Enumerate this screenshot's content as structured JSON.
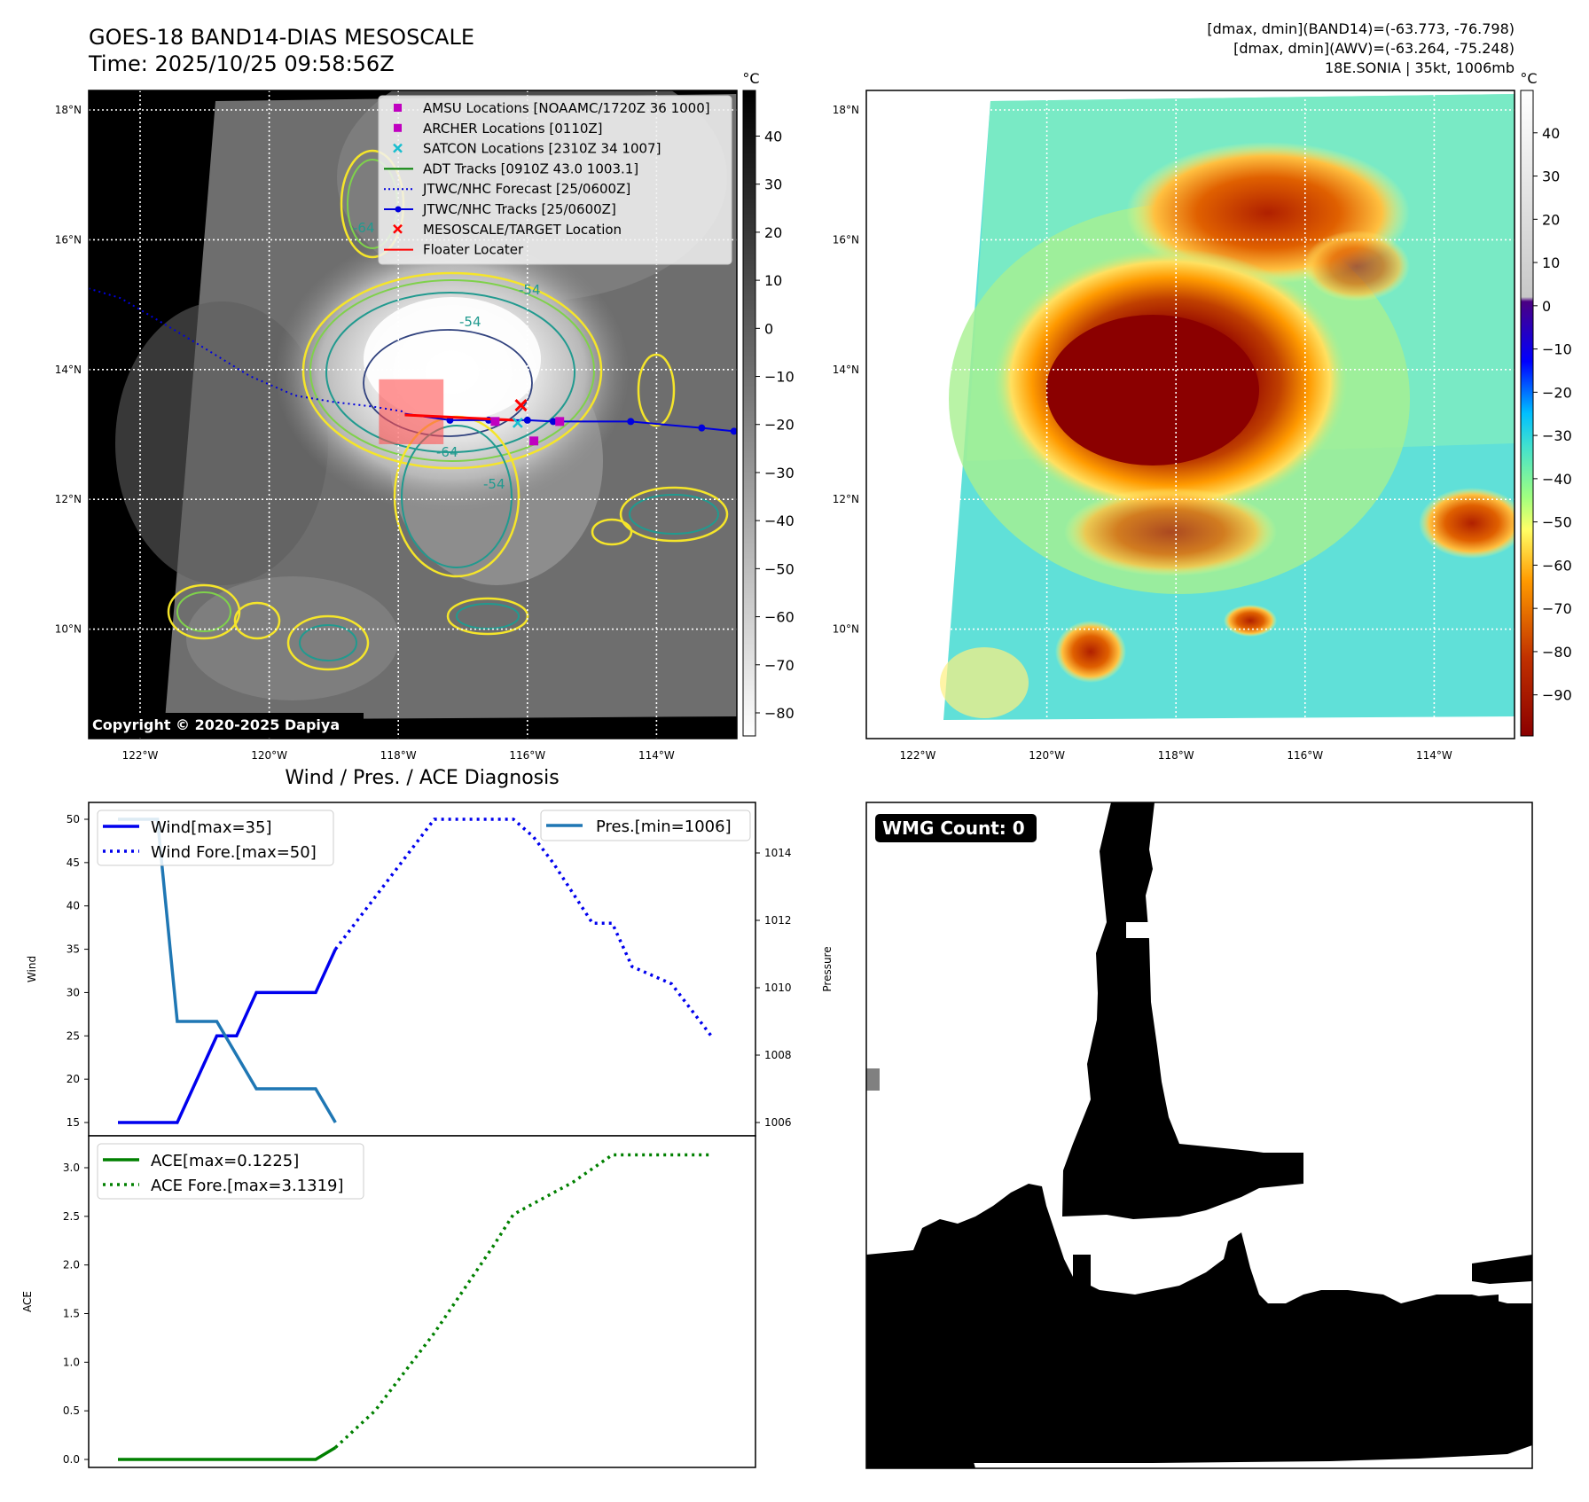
{
  "header": {
    "title": "GOES-18 BAND14-DIAS MESOSCALE",
    "time": "Time: 2025/10/25 09:58:56Z",
    "stats_line1": "[dmax, dmin](BAND14)=(-63.773, -76.798)",
    "stats_line2": "[dmax, dmin](AWV)=(-63.264, -75.248)",
    "stats_line3": "18E.SONIA | 35kt, 1006mb"
  },
  "copyright": "Copyright © 2020-2025 Dapiya",
  "colorbar_unit": "°C",
  "colors": {
    "wind": "#0000ee",
    "pressure": "#1f77b4",
    "ace": "#008000",
    "track": "#0000dd",
    "floater": "#ff0000",
    "contour_yellow": "#f5e52a",
    "contour_green": "#7fd14b",
    "contour_teal": "#219a8f",
    "contour_navy": "#31427e"
  },
  "chart_data": [
    {
      "type": "heatmap",
      "name": "ir_grayscale",
      "lon_ticks": [
        "122°W",
        "120°W",
        "118°W",
        "116°W",
        "114°W"
      ],
      "lat_ticks": [
        "18°N",
        "16°N",
        "14°N",
        "12°N",
        "10°N"
      ],
      "lon_values": [
        -122,
        -120,
        -118,
        -116,
        -114
      ],
      "lat_values": [
        18,
        16,
        14,
        12,
        10
      ],
      "colorbar": {
        "unit": "°C",
        "ticks": [
          40,
          30,
          20,
          10,
          0,
          -10,
          -20,
          -30,
          -40,
          -50,
          -60,
          -70,
          -80
        ],
        "tick_labels": [
          "40",
          "30",
          "20",
          "10",
          "0",
          "−10",
          "−20",
          "−30",
          "−40",
          "−50",
          "−60",
          "−70",
          "−80"
        ]
      },
      "contour_labels": [
        "-54",
        "-54",
        "-64",
        "-54",
        "-64"
      ],
      "legend": [
        {
          "label": "AMSU Locations [NOAAMC/1720Z 36 1000]",
          "marker": "square",
          "color": "#c000c0"
        },
        {
          "label": "ARCHER Locations [0110Z]",
          "marker": "square",
          "color": "#c000c0"
        },
        {
          "label": "SATCON Locations [2310Z 34 1007]",
          "marker": "x",
          "color": "#17becf"
        },
        {
          "label": "ADT Tracks [0910Z 43.0 1003.1]",
          "marker": "line",
          "color": "#008000"
        },
        {
          "label": "JTWC/NHC Forecast [25/0600Z]",
          "marker": "dotted",
          "color": "#0000dd"
        },
        {
          "label": "JTWC/NHC Tracks [25/0600Z]",
          "marker": "line-dot",
          "color": "#0000dd"
        },
        {
          "label": "MESOSCALE/TARGET Location",
          "marker": "x",
          "color": "#ff0000"
        },
        {
          "label": "Floater Locater",
          "marker": "line",
          "color": "#ff0000"
        }
      ],
      "forecast_track": [
        {
          "lon": -122.8,
          "lat": 15.25
        },
        {
          "lon": -122.3,
          "lat": 15.1
        },
        {
          "lon": -121.2,
          "lat": 14.45
        },
        {
          "lon": -120.3,
          "lat": 13.9
        },
        {
          "lon": -119.6,
          "lat": 13.6
        },
        {
          "lon": -119.0,
          "lat": 13.5
        },
        {
          "lon": -118.4,
          "lat": 13.43
        },
        {
          "lon": -117.9,
          "lat": 13.35
        }
      ],
      "best_track": [
        {
          "lon": -117.9,
          "lat": 13.32
        },
        {
          "lon": -117.2,
          "lat": 13.22
        },
        {
          "lon": -116.6,
          "lat": 13.22
        },
        {
          "lon": -116.0,
          "lat": 13.22
        },
        {
          "lon": -115.6,
          "lat": 13.2
        },
        {
          "lon": -114.4,
          "lat": 13.2
        },
        {
          "lon": -113.3,
          "lat": 13.1
        },
        {
          "lon": -112.8,
          "lat": 13.05
        }
      ],
      "mesoscale_target": {
        "lon": -116.1,
        "lat": 13.45
      },
      "amsu_points": [
        {
          "lon": -116.5,
          "lat": 13.2
        },
        {
          "lon": -115.9,
          "lat": 12.9
        },
        {
          "lon": -115.5,
          "lat": 13.2
        }
      ],
      "floater_box": {
        "lon_min": -118.3,
        "lon_max": -117.3,
        "lat_min": 12.85,
        "lat_max": 13.85
      }
    },
    {
      "type": "heatmap",
      "name": "ir_enhanced",
      "lon_ticks": [
        "122°W",
        "120°W",
        "118°W",
        "116°W",
        "114°W"
      ],
      "lat_ticks": [
        "18°N",
        "16°N",
        "14°N",
        "12°N",
        "10°N"
      ],
      "lon_values": [
        -122,
        -120,
        -118,
        -116,
        -114
      ],
      "lat_values": [
        18,
        16,
        14,
        12,
        10
      ],
      "colorbar": {
        "unit": "°C",
        "ticks": [
          40,
          30,
          20,
          10,
          0,
          -10,
          -20,
          -30,
          -40,
          -50,
          -60,
          -70,
          -80,
          -90
        ],
        "tick_labels": [
          "40",
          "30",
          "20",
          "10",
          "0",
          "−10",
          "−20",
          "−30",
          "−40",
          "−50",
          "−60",
          "−70",
          "−80",
          "−90"
        ]
      }
    },
    {
      "type": "line",
      "name": "wind_pressure",
      "title": "Wind / Pres. / ACE Diagnosis",
      "ylabel": "Wind",
      "ylabel_right": "Pressure",
      "ylim": [
        13.5,
        51.5
      ],
      "ylim_right": [
        1005.5,
        1015.1
      ],
      "y_ticks": [
        15,
        20,
        25,
        30,
        35,
        40,
        45,
        50
      ],
      "y_ticks_right": [
        1006,
        1008,
        1010,
        1012,
        1014
      ],
      "series": [
        {
          "name": "Wind[max=35]",
          "style": "solid",
          "x": [
            0,
            3,
            5,
            6,
            7,
            8,
            10,
            11
          ],
          "values": [
            15,
            15,
            25,
            25,
            30,
            30,
            30,
            35
          ]
        },
        {
          "name": "Wind Fore.[max=50]",
          "style": "dotted",
          "x": [
            11,
            12,
            16,
            17,
            19,
            20,
            21,
            22,
            24,
            25,
            26,
            28,
            30
          ],
          "values": [
            35,
            38,
            50,
            50,
            50,
            50,
            48,
            45,
            38,
            38,
            33,
            31,
            25
          ]
        },
        {
          "name": "Pres.[min=1006]",
          "axis": "right",
          "style": "solid",
          "x": [
            0,
            2,
            3,
            5,
            7,
            10,
            11
          ],
          "values": [
            1015,
            1015,
            1009,
            1009,
            1007,
            1007,
            1006
          ]
        }
      ],
      "legend_left": "upper-left",
      "legend_right": "upper-right"
    },
    {
      "type": "line",
      "name": "ace",
      "ylabel": "ACE",
      "ylim": [
        -0.1,
        3.3
      ],
      "y_ticks": [
        0.0,
        0.5,
        1.0,
        1.5,
        2.0,
        2.5,
        3.0
      ],
      "y_tick_labels": [
        "0.0",
        "0.5",
        "1.0",
        "1.5",
        "2.0",
        "2.5",
        "3.0"
      ],
      "series": [
        {
          "name": "ACE[max=0.1225]",
          "style": "solid",
          "x": [
            0,
            10,
            11
          ],
          "values": [
            0,
            0,
            0.1225
          ]
        },
        {
          "name": "ACE Fore.[max=3.1319]",
          "style": "dotted",
          "x": [
            11,
            13,
            16,
            19,
            20,
            23,
            25,
            27,
            30
          ],
          "values": [
            0.1225,
            0.5,
            1.3,
            2.2,
            2.52,
            2.85,
            3.1319,
            3.1319,
            3.1319
          ]
        }
      ],
      "legend": "upper-left"
    },
    {
      "type": "heatmap",
      "name": "wmg_mask",
      "badge": "WMG Count: 0"
    }
  ]
}
